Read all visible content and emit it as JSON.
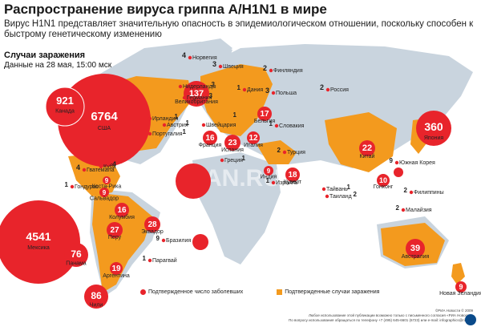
{
  "title": "Распространение вируса гриппа A/H1N1 в мире",
  "subtitle": "Вирус H1N1 представляет значительную опасность в эпидемиологическом отношении, поскольку способен к быстрому генетическому изменению",
  "cases_label": "Случаи заражения",
  "date_label": "Данные на 28 мая, 15:00 мск",
  "colors": {
    "affected_country": "#f39a1e",
    "land": "#c9d4de",
    "confirmed_dot": "#e8242b"
  },
  "legend": {
    "confirmed": "Подтвержденное число заболевших",
    "suspected": "Подтвержденные случаи заражения"
  },
  "footer": {
    "credit": "©РИА Новости © 2009",
    "line1": "Любое использование этой публикации возможно только с письменного согласия «РИА Новости»",
    "line2": "По вопросу использования обращаться по телефону +7 (495) 645-6601 (6723) или e-mail: infographics@rian.ru"
  },
  "watermark": "RIAN.RU",
  "logo_icon": "rian-logo-icon",
  "countries": [
    {
      "name": "Канада",
      "cases": "921"
    },
    {
      "name": "США",
      "cases": "6764"
    },
    {
      "name": "Мексика",
      "cases": "4541"
    },
    {
      "name": "Норвегия",
      "cases": "4"
    },
    {
      "name": "Великобритания",
      "cases": "137"
    },
    {
      "name": "Швеция",
      "cases": "3"
    },
    {
      "name": "Финляндия",
      "cases": "2"
    },
    {
      "name": "Нидерланды",
      "cases": "3"
    },
    {
      "name": "Германия",
      "cases": "3"
    },
    {
      "name": "Дания",
      "cases": "1"
    },
    {
      "name": "Польша",
      "cases": "3"
    },
    {
      "name": "Россия",
      "cases": "2"
    },
    {
      "name": "Ирландия",
      "cases": "1"
    },
    {
      "name": "Бельгия",
      "cases": "17"
    },
    {
      "name": "Австрия",
      "cases": "1"
    },
    {
      "name": "Франция",
      "cases": "16"
    },
    {
      "name": "Швейцария",
      "cases": "1"
    },
    {
      "name": "Словакия",
      "cases": "1"
    },
    {
      "name": "Италия",
      "cases": "12"
    },
    {
      "name": "Португалия",
      "cases": "1"
    },
    {
      "name": "Испания",
      "cases": "23"
    },
    {
      "name": "Греция",
      "cases": "1"
    },
    {
      "name": "Турция",
      "cases": "2"
    },
    {
      "name": "Израиль",
      "cases": "1"
    },
    {
      "name": "Кувейт",
      "cases": "18"
    },
    {
      "name": "Китай",
      "cases": "22"
    },
    {
      "name": "Южная Корея",
      "cases": "9"
    },
    {
      "name": "Япония",
      "cases": "360"
    },
    {
      "name": "Тайвань",
      "cases": "1"
    },
    {
      "name": "Таиланд",
      "cases": "2"
    },
    {
      "name": "Филиппины",
      "cases": "2"
    },
    {
      "name": "Малайзия",
      "cases": "2"
    },
    {
      "name": "Гонконг",
      "cases": "10"
    },
    {
      "name": "Австралия",
      "cases": "39"
    },
    {
      "name": "Новая Зеландия",
      "cases": "9"
    },
    {
      "name": "Гватемала",
      "cases": "4"
    },
    {
      "name": "Куба",
      "cases": "4"
    },
    {
      "name": "Коста-Рика",
      "cases": "9"
    },
    {
      "name": "Гондурас",
      "cases": "1"
    },
    {
      "name": "Сальвадор",
      "cases": "9"
    },
    {
      "name": "Колумбия",
      "cases": "16"
    },
    {
      "name": "Эквадор",
      "cases": "28"
    },
    {
      "name": "Перу",
      "cases": "27"
    },
    {
      "name": "Бразилия",
      "cases": "9"
    },
    {
      "name": "Панама",
      "cases": "76"
    },
    {
      "name": "Парагвай",
      "cases": "1"
    },
    {
      "name": "Аргентина",
      "cases": "19"
    },
    {
      "name": "Чили",
      "cases": "86"
    },
    {
      "name": "Индия",
      "cases": "9"
    }
  ]
}
